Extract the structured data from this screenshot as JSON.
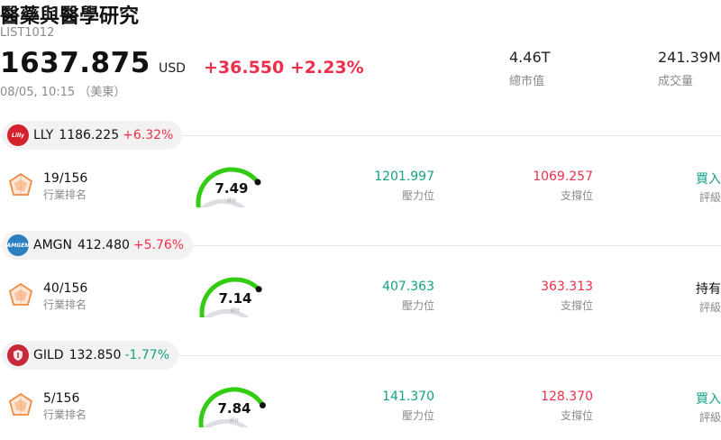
{
  "header": {
    "title": "醫藥與醫學研究",
    "code": "LIST1012",
    "price": "1637.875",
    "currency": "USD",
    "change": "+36.550",
    "change_pct": "+2.23%",
    "timestamp": "08/05, 10:15 （美東）",
    "stats": [
      {
        "value": "4.46T",
        "label": "總市值"
      },
      {
        "value": "241.39M",
        "label": "成交量"
      }
    ]
  },
  "labels": {
    "rank": "行業排名",
    "resistance": "壓力位",
    "support": "支撐位",
    "rating": "評級",
    "gauge_tag": "評分"
  },
  "stocks": [
    {
      "symbol": "LLY",
      "logo_text": "Lilly",
      "logo_color": "#d5202e",
      "price": "1186.225",
      "pct": "+6.32%",
      "direction": "up",
      "rank": "19/156",
      "score": "7.49",
      "score_value": 7.49,
      "resistance": "1201.997",
      "support": "1069.257",
      "rating": "買入",
      "rating_color": "#16a085"
    },
    {
      "symbol": "AMGN",
      "logo_text": "AMGEN",
      "logo_color": "#2e7fc0",
      "price": "412.480",
      "pct": "+5.76%",
      "direction": "up",
      "rank": "40/156",
      "score": "7.14",
      "score_value": 7.14,
      "resistance": "407.363",
      "support": "363.313",
      "rating": "持有",
      "rating_color": "#111111"
    },
    {
      "symbol": "GILD",
      "logo_text": "",
      "logo_color": "#c8283a",
      "price": "132.850",
      "pct": "-1.77%",
      "direction": "down",
      "rank": "5/156",
      "score": "7.84",
      "score_value": 7.84,
      "resistance": "141.370",
      "support": "128.370",
      "rating": "買入",
      "rating_color": "#16a085"
    }
  ]
}
